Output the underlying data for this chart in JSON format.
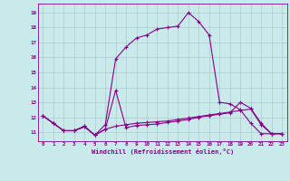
{
  "xlabel": "Windchill (Refroidissement éolien,°C)",
  "bg_color": "#c8eaea",
  "grid_color": "#b0c8c8",
  "line_color": "#880088",
  "x_ticks": [
    0,
    1,
    2,
    3,
    4,
    5,
    6,
    7,
    8,
    9,
    10,
    11,
    12,
    13,
    14,
    15,
    16,
    17,
    18,
    19,
    20,
    21,
    22,
    23
  ],
  "y_ticks": [
    11,
    12,
    13,
    14,
    15,
    16,
    17,
    18,
    19
  ],
  "ylim": [
    10.4,
    19.6
  ],
  "xlim": [
    -0.5,
    23.5
  ],
  "series1": [
    12.1,
    11.6,
    11.1,
    11.1,
    11.4,
    10.8,
    11.5,
    15.9,
    16.7,
    17.3,
    17.5,
    17.9,
    18.0,
    18.1,
    19.0,
    18.4,
    17.5,
    13.0,
    12.9,
    12.5,
    11.6,
    10.9,
    10.9,
    10.9
  ],
  "series2": [
    12.1,
    11.6,
    11.1,
    11.1,
    11.35,
    10.8,
    11.2,
    11.4,
    11.5,
    11.6,
    11.65,
    11.7,
    11.75,
    11.85,
    11.95,
    12.05,
    12.15,
    12.25,
    12.35,
    12.45,
    12.55,
    11.5,
    10.9,
    10.9
  ],
  "series3": [
    12.1,
    11.6,
    11.1,
    11.1,
    11.4,
    10.8,
    11.2,
    13.8,
    11.3,
    11.45,
    11.5,
    11.55,
    11.65,
    11.75,
    11.85,
    12.0,
    12.1,
    12.2,
    12.3,
    13.0,
    12.6,
    11.6,
    10.9,
    10.9
  ]
}
